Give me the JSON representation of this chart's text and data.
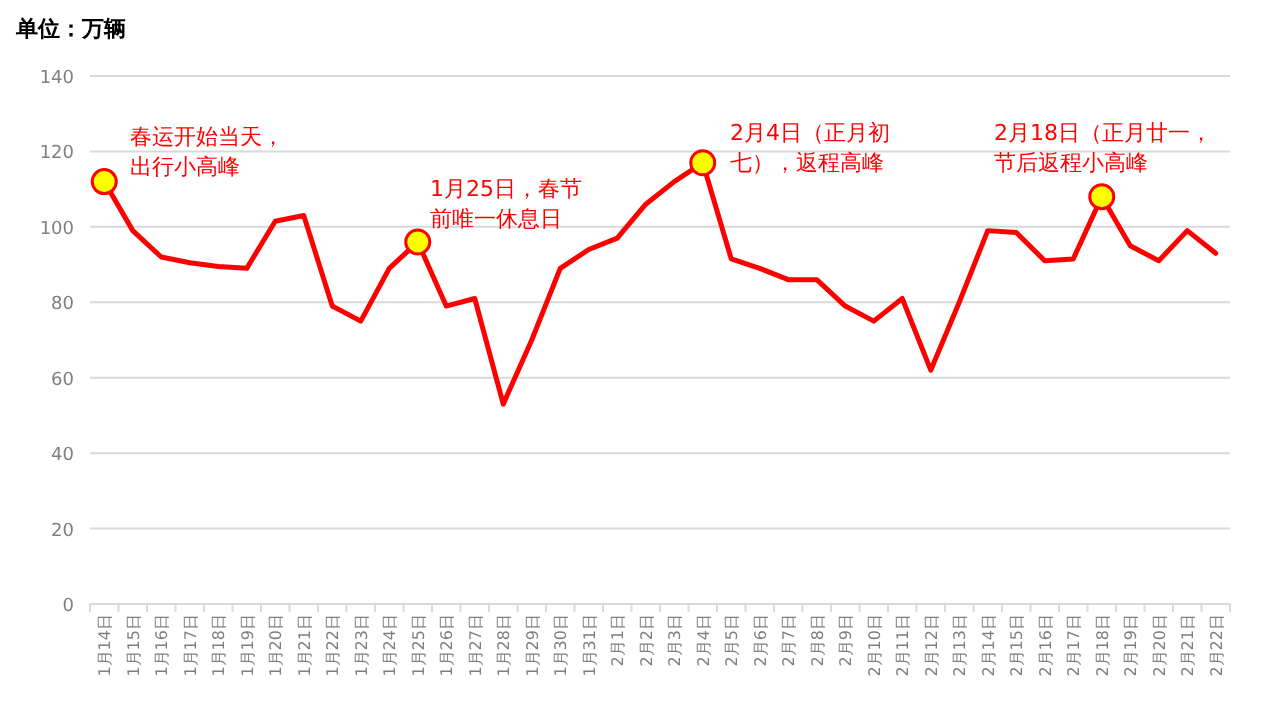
{
  "chart_data": {
    "type": "line",
    "ylabel": "单位：万辆",
    "categories": [
      "1月14日",
      "1月15日",
      "1月16日",
      "1月17日",
      "1月18日",
      "1月19日",
      "1月20日",
      "1月21日",
      "1月22日",
      "1月23日",
      "1月24日",
      "1月25日",
      "1月26日",
      "1月27日",
      "1月28日",
      "1月29日",
      "1月30日",
      "1月31日",
      "2月1日",
      "2月2日",
      "2月3日",
      "2月4日",
      "2月5日",
      "2月6日",
      "2月7日",
      "2月8日",
      "2月9日",
      "2月10日",
      "2月11日",
      "2月12日",
      "2月13日",
      "2月14日",
      "2月15日",
      "2月16日",
      "2月17日",
      "2月18日",
      "2月19日",
      "2月20日",
      "2月21日",
      "2月22日"
    ],
    "series": [
      {
        "color": "#ff0000",
        "values": [
          112,
          99,
          92,
          90.5,
          89.5,
          89,
          101.5,
          103,
          79,
          75,
          89,
          96,
          79,
          81,
          53,
          70,
          89,
          94,
          97,
          106,
          112,
          117,
          91.5,
          89,
          86,
          86,
          79,
          75,
          81,
          62,
          80,
          99,
          98.5,
          91,
          91.5,
          108,
          95,
          91,
          99,
          93
        ]
      },
      {
        "type": "scatter",
        "color": "#ffff00",
        "marker": "circle",
        "values": [
          112,
          null,
          null,
          null,
          null,
          null,
          null,
          null,
          null,
          null,
          null,
          96,
          null,
          null,
          null,
          null,
          null,
          null,
          null,
          null,
          null,
          117,
          null,
          null,
          null,
          null,
          null,
          null,
          null,
          null,
          null,
          null,
          null,
          null,
          null,
          108,
          null,
          null,
          null,
          null
        ]
      }
    ],
    "annotations": [
      "春运开始当天，出行小高峰",
      "1月25日，春节前唯一休息日",
      "2月4日（正月初七），返程高峰",
      "2月18日（正月廿一，节后返程小高峰"
    ],
    "ylim": [
      0,
      140
    ],
    "yticks": [
      0,
      20,
      40,
      60,
      80,
      100,
      120,
      140
    ],
    "grid": "y",
    "marker": "none",
    "line_style": "solid"
  }
}
